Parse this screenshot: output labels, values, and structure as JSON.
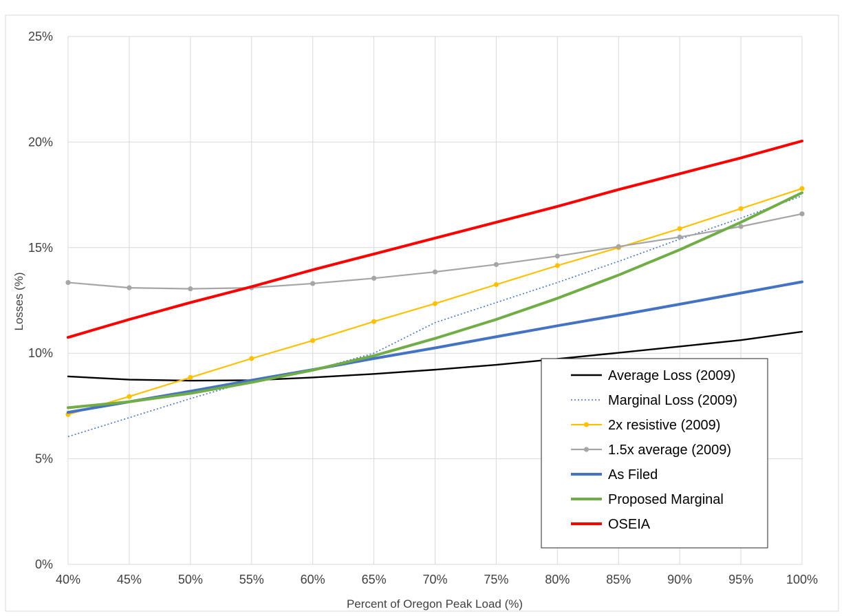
{
  "header": {
    "title_fragment": ""
  },
  "chart_data": {
    "type": "line",
    "title": "",
    "xlabel": "Percent of  Oregon Peak Load (%)",
    "ylabel": "Losses (%)",
    "x": [
      40,
      45,
      50,
      55,
      60,
      65,
      70,
      75,
      80,
      85,
      90,
      95,
      100
    ],
    "x_tick_labels": [
      "40%",
      "45%",
      "50%",
      "55%",
      "60%",
      "65%",
      "70%",
      "75%",
      "80%",
      "85%",
      "90%",
      "95%",
      "100%"
    ],
    "ylim": [
      0,
      25
    ],
    "y_ticks": [
      0,
      5,
      10,
      15,
      20,
      25
    ],
    "y_tick_labels": [
      "0%",
      "5%",
      "10%",
      "15%",
      "20%",
      "25%"
    ],
    "grid": true,
    "legend_position": "bottom-right",
    "series": [
      {
        "name": "Average Loss (2009)",
        "color": "#000000",
        "style": "solid",
        "markers": false,
        "values": [
          8.9,
          8.75,
          8.7,
          8.72,
          8.85,
          9.02,
          9.22,
          9.45,
          9.73,
          10.02,
          10.32,
          10.62,
          11.02
        ]
      },
      {
        "name": "Marginal Loss (2009)",
        "color": "#4472c4",
        "style": "dotted",
        "markers": false,
        "values": [
          6.05,
          6.95,
          7.85,
          8.7,
          9.2,
          10.0,
          11.45,
          12.4,
          13.35,
          14.35,
          15.4,
          16.4,
          17.45
        ]
      },
      {
        "name": "2x resistive (2009)",
        "color": "#ffc000",
        "style": "solid",
        "markers": true,
        "values": [
          7.1,
          7.95,
          8.85,
          9.75,
          10.6,
          11.5,
          12.35,
          13.25,
          14.15,
          15.0,
          15.9,
          16.85,
          17.8
        ]
      },
      {
        "name": "1.5x average (2009)",
        "color": "#a5a5a5",
        "style": "solid",
        "markers": true,
        "values": [
          13.35,
          13.1,
          13.05,
          13.1,
          13.3,
          13.55,
          13.85,
          14.2,
          14.6,
          15.05,
          15.5,
          16.0,
          16.6
        ]
      },
      {
        "name": "As Filed",
        "color": "#4472c4",
        "style": "solid",
        "markers": false,
        "values": [
          7.2,
          7.7,
          8.2,
          8.72,
          9.22,
          9.75,
          10.25,
          10.78,
          11.3,
          11.8,
          12.32,
          12.85,
          13.38
        ]
      },
      {
        "name": "Proposed Marginal",
        "color": "#70ad47",
        "style": "solid",
        "markers": false,
        "values": [
          7.42,
          7.7,
          8.1,
          8.62,
          9.2,
          9.88,
          10.7,
          11.6,
          12.6,
          13.7,
          14.9,
          16.2,
          17.6
        ]
      },
      {
        "name": "OSEIA",
        "color": "#ff0000",
        "style": "solid",
        "markers": false,
        "values": [
          10.75,
          11.6,
          12.4,
          13.15,
          13.95,
          14.7,
          15.45,
          16.2,
          16.95,
          17.75,
          18.5,
          19.25,
          20.05
        ]
      }
    ]
  }
}
